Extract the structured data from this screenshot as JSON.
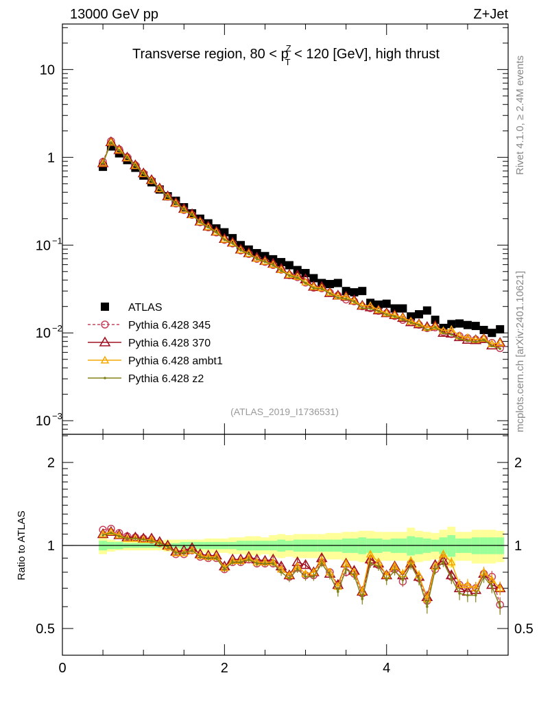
{
  "header": {
    "left": "13000 GeV pp",
    "right": "Z+Jet"
  },
  "side_text": {
    "rivet": "Rivet 4.1.0, ≥ 2.4M events",
    "mcplots": "mcplots.cern.ch [arXiv:2401.10621]"
  },
  "chart_data": {
    "type": "scatter",
    "title": "Transverse region, 80 < p_T^Z < 120 [GeV], high thrust",
    "title_parts": {
      "pre": "Transverse region, 80 < p",
      "sup": "Z",
      "sub": "T",
      "post": " < 120 [GeV], high thrust"
    },
    "analysis_label": "(ATLAS_2019_I1736531)",
    "xlabel": "",
    "ylabel": "",
    "ratio_ylabel": "Ratio to ATLAS",
    "xlim": [
      0,
      5.5
    ],
    "ylim": [
      0.0007,
      33
    ],
    "ratio_ylim": [
      0.4,
      2.53
    ],
    "x_tick_labels": [
      "0",
      "2",
      "4"
    ],
    "x_ticks": [
      0,
      2,
      4
    ],
    "y_tick_labels": [
      {
        "value": 10,
        "base": "10",
        "exp": ""
      },
      {
        "value": 1,
        "base": "1",
        "exp": ""
      },
      {
        "value": 0.1,
        "base": "10",
        "exp": "−1"
      },
      {
        "value": 0.01,
        "base": "10",
        "exp": "−2"
      },
      {
        "value": 0.001,
        "base": "10",
        "exp": "−3"
      }
    ],
    "ratio_tick_labels": [
      {
        "value": 2,
        "label": "2"
      },
      {
        "value": 1,
        "label": "1"
      },
      {
        "value": 0.5,
        "label": "0.5"
      }
    ],
    "legend_position": "center-left",
    "x": [
      0.5,
      0.6,
      0.7,
      0.8,
      0.9,
      1.0,
      1.1,
      1.2,
      1.3,
      1.4,
      1.5,
      1.6,
      1.7,
      1.8,
      1.9,
      2.0,
      2.1,
      2.2,
      2.3,
      2.4,
      2.5,
      2.6,
      2.7,
      2.8,
      2.9,
      3.0,
      3.1,
      3.2,
      3.3,
      3.4,
      3.5,
      3.6,
      3.7,
      3.8,
      3.9,
      4.0,
      4.1,
      4.2,
      4.3,
      4.4,
      4.5,
      4.6,
      4.7,
      4.8,
      4.9,
      5.0,
      5.1,
      5.2,
      5.3,
      5.4
    ],
    "data": {
      "name": "ATLAS",
      "color": "#000000",
      "values": [
        0.78,
        1.33,
        1.11,
        0.93,
        0.76,
        0.62,
        0.52,
        0.43,
        0.36,
        0.32,
        0.27,
        0.23,
        0.2,
        0.177,
        0.155,
        0.14,
        0.12,
        0.1,
        0.089,
        0.081,
        0.075,
        0.069,
        0.064,
        0.059,
        0.052,
        0.048,
        0.042,
        0.037,
        0.036,
        0.037,
        0.03,
        0.029,
        0.03,
        0.022,
        0.021,
        0.0215,
        0.019,
        0.019,
        0.0154,
        0.0163,
        0.018,
        0.0141,
        0.0114,
        0.0126,
        0.0128,
        0.0123,
        0.012,
        0.0108,
        0.01,
        0.011
      ],
      "stat_band": [
        0.04,
        0.03,
        0.03,
        0.02,
        0.02,
        0.02,
        0.02,
        0.02,
        0.02,
        0.02,
        0.03,
        0.03,
        0.03,
        0.03,
        0.03,
        0.03,
        0.03,
        0.04,
        0.04,
        0.04,
        0.04,
        0.04,
        0.05,
        0.04,
        0.05,
        0.05,
        0.05,
        0.05,
        0.05,
        0.05,
        0.06,
        0.06,
        0.07,
        0.06,
        0.06,
        0.05,
        0.06,
        0.06,
        0.08,
        0.07,
        0.06,
        0.05,
        0.07,
        0.09,
        0.06,
        0.06,
        0.07,
        0.07,
        0.07,
        0.07
      ],
      "total_band": [
        0.07,
        0.05,
        0.04,
        0.04,
        0.04,
        0.04,
        0.04,
        0.04,
        0.05,
        0.05,
        0.05,
        0.05,
        0.05,
        0.06,
        0.06,
        0.06,
        0.07,
        0.07,
        0.08,
        0.08,
        0.07,
        0.09,
        0.1,
        0.09,
        0.1,
        0.1,
        0.1,
        0.1,
        0.11,
        0.11,
        0.12,
        0.12,
        0.13,
        0.13,
        0.12,
        0.12,
        0.12,
        0.12,
        0.16,
        0.13,
        0.12,
        0.11,
        0.14,
        0.17,
        0.12,
        0.12,
        0.14,
        0.14,
        0.14,
        0.13
      ],
      "stat_color": "#99ff99",
      "total_color": "#ffff99"
    },
    "series": [
      {
        "name": "Pythia 6.428 345",
        "color": "#c8405a",
        "marker": "circle",
        "dashed": true,
        "ratio": [
          1.14,
          1.15,
          1.11,
          1.08,
          1.07,
          1.06,
          1.05,
          1.02,
          0.99,
          0.93,
          0.93,
          0.96,
          0.91,
          0.9,
          0.9,
          0.82,
          0.87,
          0.87,
          0.89,
          0.86,
          0.86,
          0.86,
          0.82,
          0.77,
          0.83,
          0.78,
          0.78,
          0.87,
          0.8,
          0.72,
          0.8,
          0.79,
          0.67,
          0.87,
          0.85,
          0.78,
          0.82,
          0.74,
          0.86,
          0.76,
          0.63,
          0.82,
          0.9,
          0.77,
          0.72,
          0.71,
          0.7,
          0.79,
          0.77,
          0.61
        ]
      },
      {
        "name": "Pythia 6.428 370",
        "color": "#a01020",
        "marker": "triangle",
        "dashed": false,
        "ratio": [
          1.1,
          1.12,
          1.09,
          1.07,
          1.07,
          1.06,
          1.06,
          1.03,
          1.0,
          0.95,
          0.96,
          0.98,
          0.93,
          0.92,
          0.92,
          0.84,
          0.89,
          0.89,
          0.91,
          0.89,
          0.88,
          0.89,
          0.84,
          0.78,
          0.87,
          0.85,
          0.8,
          0.9,
          0.79,
          0.72,
          0.86,
          0.81,
          0.68,
          0.89,
          0.86,
          0.78,
          0.84,
          0.78,
          0.86,
          0.77,
          0.65,
          0.85,
          0.88,
          0.78,
          0.7,
          0.68,
          0.69,
          0.79,
          0.72,
          0.7
        ]
      },
      {
        "name": "Pythia 6.428 ambt1",
        "color": "#f5a800",
        "marker": "triangle-small",
        "dashed": false,
        "ratio": [
          1.1,
          1.12,
          1.09,
          1.06,
          1.06,
          1.05,
          1.05,
          1.02,
          0.99,
          0.94,
          0.94,
          0.96,
          0.92,
          0.91,
          0.91,
          0.83,
          0.88,
          0.88,
          0.9,
          0.87,
          0.87,
          0.87,
          0.82,
          0.78,
          0.84,
          0.79,
          0.8,
          0.88,
          0.8,
          0.71,
          0.86,
          0.8,
          0.68,
          0.93,
          0.87,
          0.78,
          0.84,
          0.79,
          0.88,
          0.78,
          0.64,
          0.84,
          0.93,
          0.87,
          0.72,
          0.72,
          0.7,
          0.8,
          0.75,
          0.7
        ]
      },
      {
        "name": "Pythia 6.428 z2",
        "color": "#808015",
        "marker": "dot",
        "dashed": false,
        "ratio": [
          1.09,
          1.11,
          1.08,
          1.06,
          1.06,
          1.05,
          1.04,
          1.02,
          0.99,
          0.94,
          0.94,
          0.96,
          0.91,
          0.9,
          0.9,
          0.82,
          0.87,
          0.87,
          0.89,
          0.86,
          0.86,
          0.86,
          0.8,
          0.76,
          0.82,
          0.77,
          0.77,
          0.86,
          0.78,
          0.68,
          0.82,
          0.78,
          0.64,
          0.86,
          0.84,
          0.75,
          0.81,
          0.75,
          0.85,
          0.75,
          0.6,
          0.82,
          0.87,
          0.76,
          0.67,
          0.66,
          0.66,
          0.77,
          0.71,
          0.6
        ]
      }
    ]
  }
}
